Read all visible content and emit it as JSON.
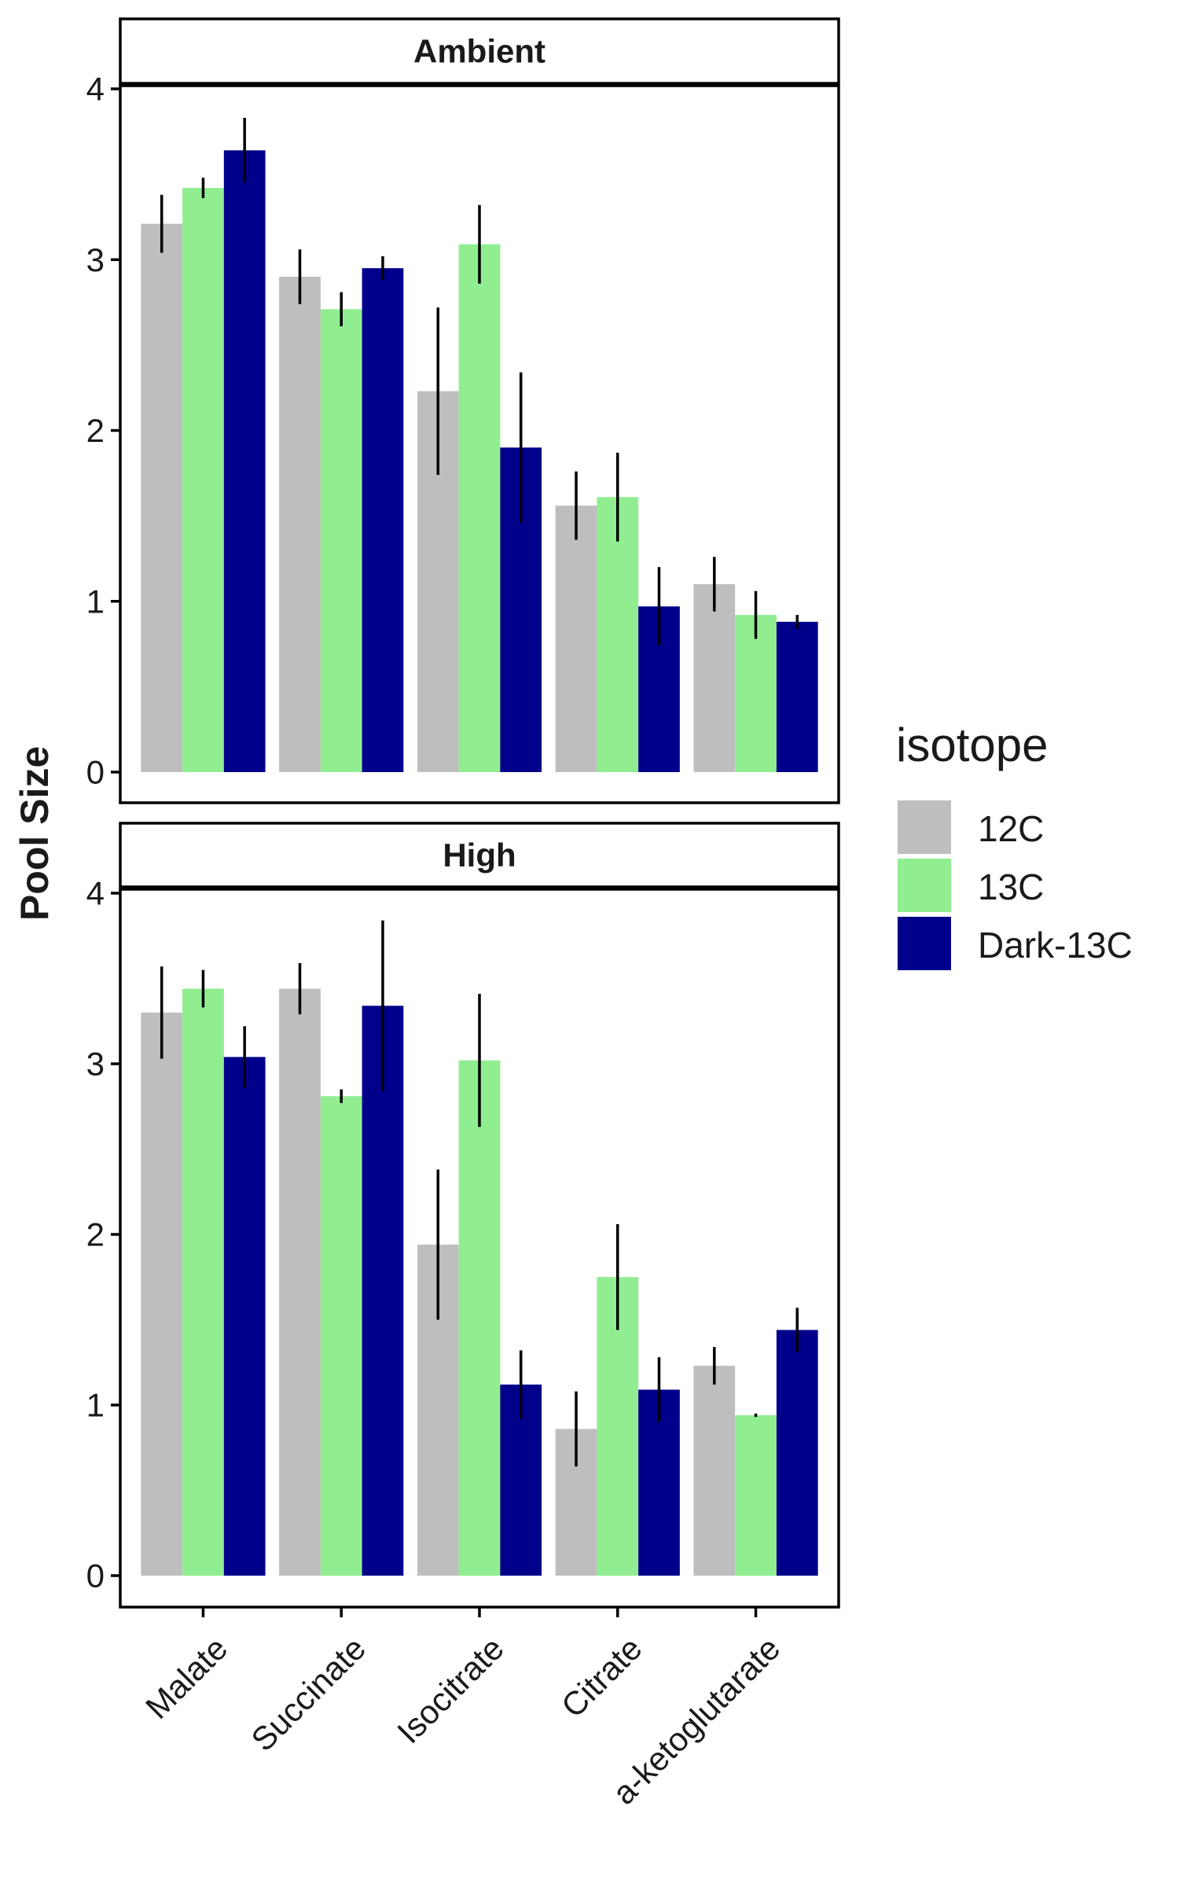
{
  "chart_data": {
    "type": "bar",
    "ylabel": "Pool Size",
    "xlabel": "",
    "ylim": [
      0,
      4
    ],
    "yticks": [
      "0",
      "1",
      "2",
      "3",
      "4"
    ],
    "categories": [
      "Malate",
      "Succinate",
      "Isocitrate",
      "Citrate",
      "a-ketoglutarate"
    ],
    "legend": {
      "title": "isotope",
      "position": "right"
    },
    "series": [
      {
        "name": "12C",
        "color": "#bebebe"
      },
      {
        "name": "13C",
        "color": "#90ee90"
      },
      {
        "name": "Dark-13C",
        "color": "#00008b"
      }
    ],
    "panels": [
      {
        "title": "Ambient",
        "values": [
          [
            3.21,
            2.9,
            2.23,
            1.56,
            1.1
          ],
          [
            3.42,
            2.71,
            3.09,
            1.61,
            0.92
          ],
          [
            3.64,
            2.95,
            1.9,
            0.97,
            0.88
          ]
        ],
        "errors": [
          [
            0.17,
            0.16,
            0.49,
            0.2,
            0.16
          ],
          [
            0.06,
            0.1,
            0.23,
            0.26,
            0.14
          ],
          [
            0.19,
            0.07,
            0.44,
            0.23,
            0.04
          ]
        ]
      },
      {
        "title": "High",
        "values": [
          [
            3.3,
            3.44,
            1.94,
            0.86,
            1.23
          ],
          [
            3.44,
            2.81,
            3.02,
            1.75,
            0.94
          ],
          [
            3.04,
            3.34,
            1.12,
            1.09,
            1.44
          ]
        ],
        "errors": [
          [
            0.27,
            0.15,
            0.44,
            0.22,
            0.11
          ],
          [
            0.11,
            0.04,
            0.39,
            0.31,
            0.01
          ],
          [
            0.18,
            0.5,
            0.2,
            0.19,
            0.13
          ]
        ]
      }
    ]
  }
}
